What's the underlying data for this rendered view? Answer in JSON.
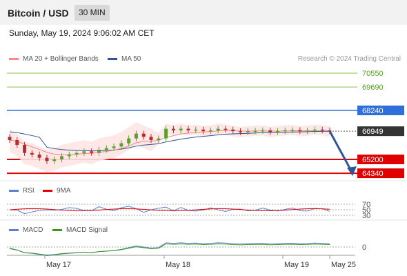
{
  "header": {
    "title": "Bitcoin / USD",
    "timeframe": "30 MIN"
  },
  "datetime": "Sunday, May 19, 2024 9:06:02 AM CET",
  "credit": "Research © 2024 Trading Central",
  "legend": {
    "price": [
      {
        "label": "MA 20 + Bollinger Bands",
        "color": "#f28b82"
      },
      {
        "label": "MA 50",
        "color": "#2f5597"
      }
    ],
    "rsi": [
      {
        "label": "RSI",
        "color": "#5b7fd6"
      },
      {
        "label": "9MA",
        "color": "#e00000"
      }
    ],
    "macd": [
      {
        "label": "MACD",
        "color": "#5b7fd6"
      },
      {
        "label": "MACD Signal",
        "color": "#3a9a1a"
      }
    ]
  },
  "colors": {
    "resistance_green": "#8bc34a",
    "pivot_blue": "#2f6fdc",
    "support_red": "#e00000",
    "current_price_bg": "#333333",
    "bull_candle": "#5d9e2e",
    "bear_candle": "#b03030",
    "arrow": "#2f5597"
  },
  "chart_data": {
    "type": "candlestick",
    "ylim": [
      63600,
      71000
    ],
    "levels": [
      {
        "value": 70550,
        "label": "70550",
        "kind": "resistance"
      },
      {
        "value": 69690,
        "label": "69690",
        "kind": "resistance"
      },
      {
        "value": 68240,
        "label": "68240",
        "kind": "pivot"
      },
      {
        "value": 66949,
        "label": "66949",
        "kind": "current"
      },
      {
        "value": 65200,
        "label": "65200",
        "kind": "support"
      },
      {
        "value": 64340,
        "label": "64340",
        "kind": "support"
      }
    ],
    "x_ticks": [
      "May 17",
      "May 18",
      "May 19",
      "May 25"
    ],
    "closes": [
      66400,
      66100,
      65600,
      65500,
      65300,
      65100,
      65200,
      65400,
      65500,
      65600,
      65700,
      65600,
      65800,
      65900,
      66000,
      66200,
      66500,
      66800,
      66600,
      66400,
      66500,
      67100,
      67000,
      67100,
      67000,
      67050,
      66950,
      67000,
      67100,
      67050,
      66950,
      66900,
      66950,
      66980,
      67000,
      66900,
      66950,
      67000,
      67020,
      66950,
      66980,
      67050,
      67000,
      66949
    ],
    "forecast": {
      "from": 66949,
      "to": 64340
    },
    "rsi": {
      "levels": [
        70,
        50,
        30
      ]
    },
    "macd": {
      "levels": [
        0
      ]
    }
  }
}
